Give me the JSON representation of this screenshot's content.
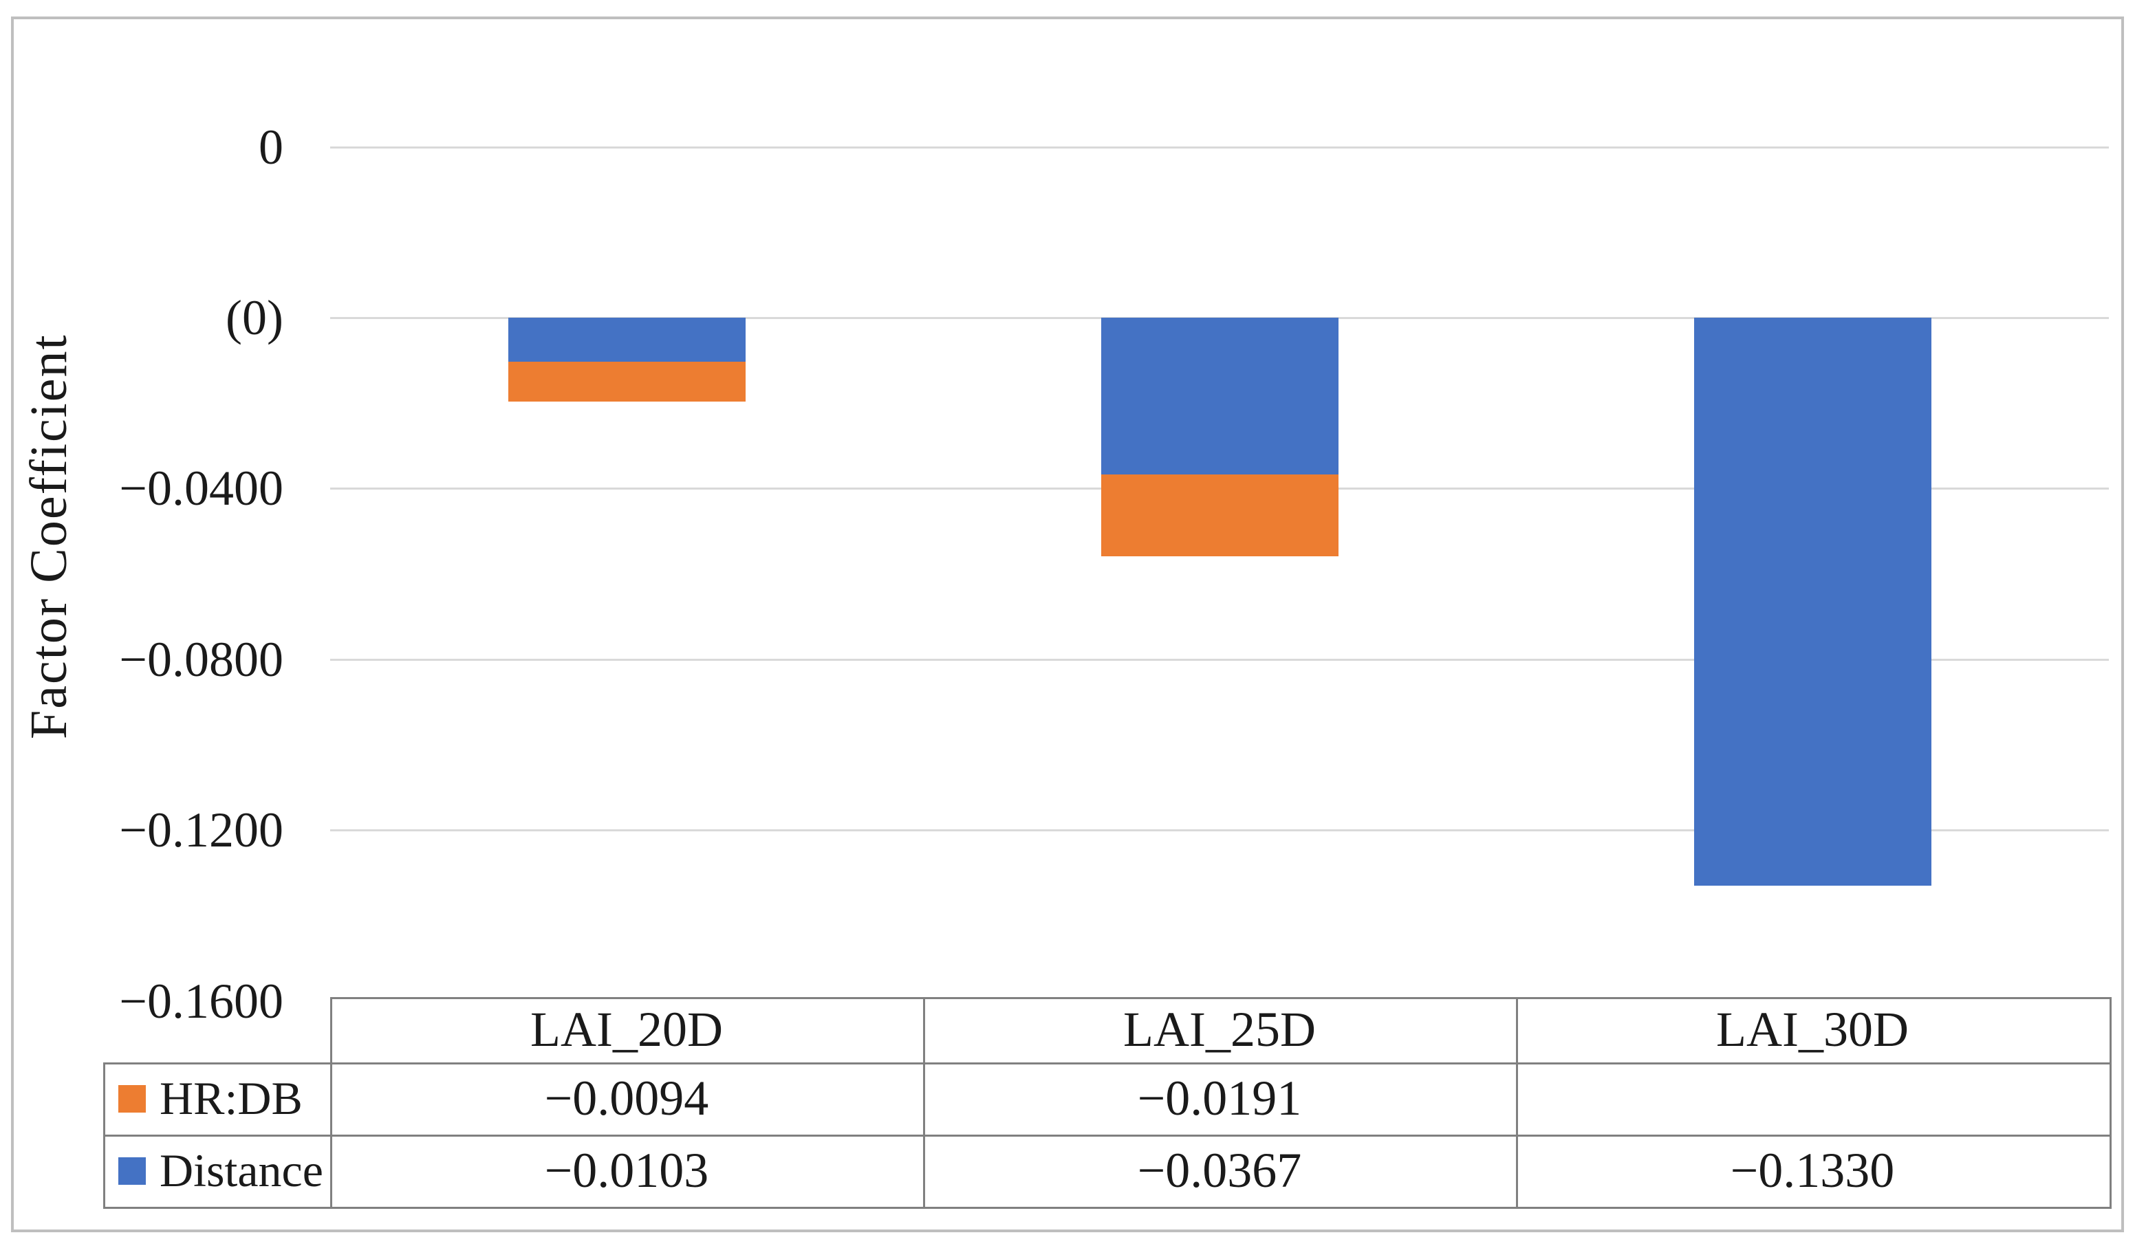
{
  "chart_data": {
    "type": "bar",
    "stacked": true,
    "title": "",
    "ylabel": "Factor Coefficient",
    "xlabel": "",
    "categories": [
      "LAI_20D",
      "LAI_25D",
      "LAI_30D"
    ],
    "series": [
      {
        "name": "HR:DB",
        "color": "#ED7D31",
        "values": [
          -0.0094,
          -0.0191,
          null
        ],
        "labels": [
          "−0.0094",
          "−0.0191",
          ""
        ]
      },
      {
        "name": "Distance",
        "color": "#4472C4",
        "values": [
          -0.0103,
          -0.0367,
          -0.133
        ],
        "labels": [
          "−0.0103",
          "−0.0367",
          "−0.1330"
        ]
      }
    ],
    "stack_order_from_zero": [
      "Distance",
      "HR:DB"
    ],
    "y_ticks": [
      {
        "label": "0",
        "value": 0.04
      },
      {
        "label": "(0)",
        "value": 0.0
      },
      {
        "label": "−0.0400",
        "value": -0.04
      },
      {
        "label": "−0.0800",
        "value": -0.08
      },
      {
        "label": "−0.1200",
        "value": -0.12
      },
      {
        "label": "−0.1600",
        "value": -0.16
      }
    ],
    "ylim": [
      -0.16,
      0.04
    ],
    "grid": true,
    "legend_position": "table-left",
    "colors": {
      "gridline": "#d9d9d9",
      "table_border": "#808080",
      "figure_border": "#bfbfbf",
      "text": "#1a1a1a"
    }
  }
}
